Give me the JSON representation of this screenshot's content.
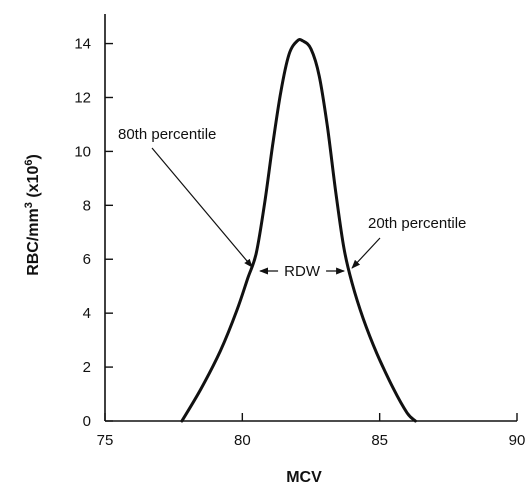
{
  "chart_data": {
    "type": "line",
    "xlabel": "MCV",
    "ylabel_main": "RBC/mm",
    "ylabel_sup1": "3",
    "ylabel_mid": " (x10",
    "ylabel_sup2": "6",
    "ylabel_end": ")",
    "xlim": [
      75,
      90
    ],
    "ylim": [
      0,
      14.8
    ],
    "x_ticks": [
      75,
      80,
      85,
      90
    ],
    "y_ticks": [
      0,
      2,
      4,
      6,
      8,
      10,
      12,
      14
    ],
    "series": [
      {
        "x": [
          77.8,
          78.5,
          79.2,
          79.8,
          80.2,
          80.5,
          80.8,
          81.1,
          81.4,
          81.7,
          82.0,
          82.2,
          82.5,
          82.8,
          83.1,
          83.4,
          83.7,
          84.0,
          84.4,
          84.9,
          85.5,
          86.0,
          86.3
        ],
        "y": [
          0,
          1.2,
          2.6,
          4.1,
          5.3,
          6.2,
          8.0,
          10.2,
          12.2,
          13.6,
          14.1,
          14.1,
          13.8,
          12.8,
          10.9,
          8.5,
          6.4,
          5.1,
          3.8,
          2.5,
          1.2,
          0.3,
          0
        ]
      }
    ],
    "annotations": {
      "left_label": "80th percentile",
      "right_label": "20th percentile",
      "rdw_label": "RDW",
      "left_point": [
        80.5,
        5.6
      ],
      "right_point": [
        83.85,
        5.6
      ],
      "left_label_anchor": [
        77.6,
        10.1
      ],
      "right_label_anchor": [
        85.2,
        6.0
      ]
    }
  }
}
